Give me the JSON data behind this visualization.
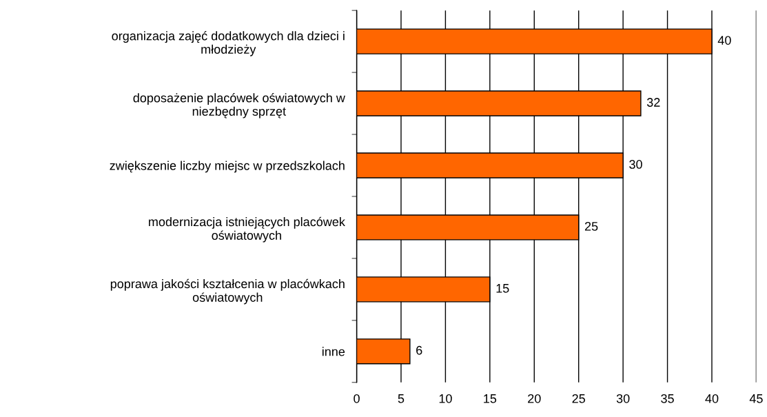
{
  "chart_data": {
    "type": "bar",
    "orientation": "horizontal",
    "categories": [
      "organizacja zajęć dodatkowych dla dzieci i\nmłodzieży",
      "doposażenie placówek oświatowych w\nniezbędny sprzęt",
      "zwiększenie liczby miejsc w przedszkolach",
      "modernizacja istniejących placówek\noświatowych",
      "poprawa jakości kształcenia w placówkach\noświatowych",
      "inne"
    ],
    "values": [
      40,
      32,
      30,
      25,
      15,
      6
    ],
    "color": "#ff6600",
    "xlim": [
      0,
      45
    ],
    "xticks": [
      0,
      5,
      10,
      15,
      20,
      25,
      30,
      35,
      40,
      45
    ],
    "grid": "x",
    "data_labels": true,
    "legend": false
  }
}
